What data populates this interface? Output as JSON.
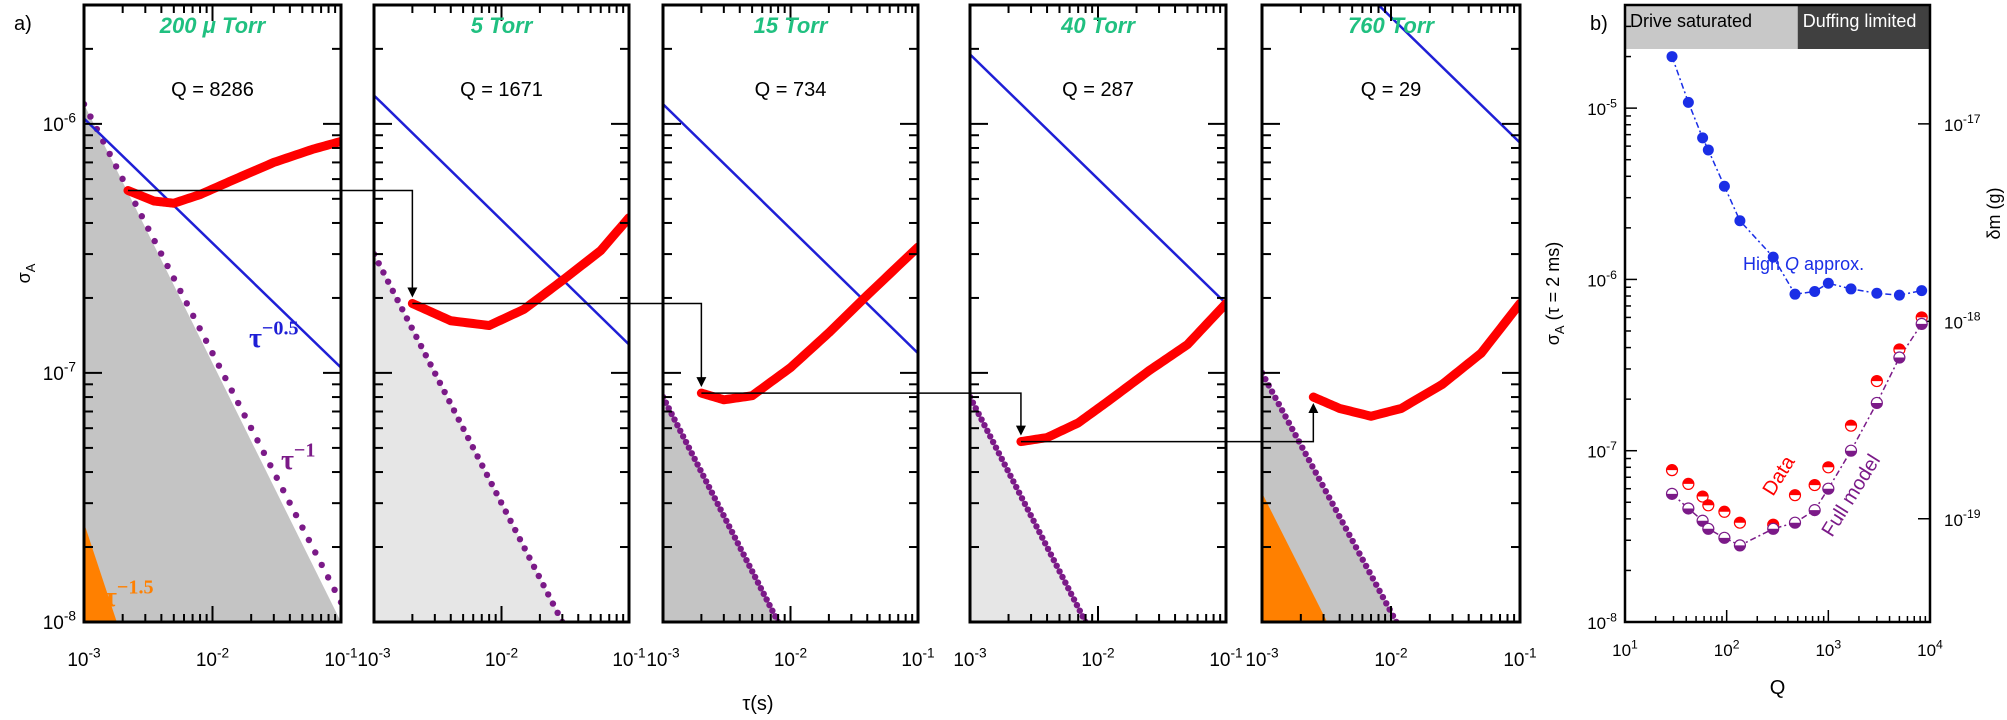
{
  "figure": {
    "panel_a_label": "a)",
    "panel_b_label": "b)",
    "shared_xlabel": "τ(s)"
  },
  "colors": {
    "data": "#ff0000",
    "tau_half": "#1f1fd6",
    "tau_one": "#7b1a88",
    "tau_three_halves": "#ff8000",
    "pressure_label": "#20c080",
    "high_q": "#1a2ee6",
    "gray_dark": "#c4c4c4",
    "gray_light": "#e6e6e6",
    "box_saturated": "#c8c8c8",
    "box_duffing": "#404040"
  },
  "chart_data": [
    {
      "type": "line",
      "id": "panel-200mtorr",
      "title": "200 μ Torr",
      "annotation": "Q = 8286",
      "xscale": "log",
      "yscale": "log",
      "xlim": [
        0.001,
        0.1
      ],
      "ylim": [
        1e-08,
        3e-06
      ],
      "xticks": [
        0.001,
        0.01,
        0.1
      ],
      "xtick_labels": [
        "10-3",
        "10-2",
        "10-1"
      ],
      "yticks": [
        1e-08,
        1e-07,
        1e-06
      ],
      "ytick_labels": [
        "10-8",
        "10-7",
        "10-6"
      ],
      "ylabel": "σA",
      "series": [
        {
          "name": "data",
          "x": [
            0.0022,
            0.0035,
            0.005,
            0.008,
            0.015,
            0.03,
            0.06,
            0.1
          ],
          "y": [
            5.4e-07,
            4.9e-07,
            4.8e-07,
            5.2e-07,
            6e-07,
            7e-07,
            7.9e-07,
            8.5e-07
          ]
        },
        {
          "name": "τ^-0.5 fit",
          "x": [
            0.001,
            0.1
          ],
          "y": [
            1.05e-06,
            1.05e-07
          ]
        },
        {
          "name": "τ^-1 bound",
          "x": [
            0.001,
            0.1
          ],
          "y": [
            1.2e-06,
            1.2e-08
          ]
        },
        {
          "name": "τ^-1.5 bound",
          "x": [
            0.001,
            0.0018
          ],
          "y": [
            2.5e-08,
            1e-08
          ]
        }
      ],
      "region_labels": [
        "τ−0.5",
        "τ−1",
        "τ−1.5"
      ]
    },
    {
      "type": "line",
      "id": "panel-5torr",
      "title": "5 Torr",
      "annotation": "Q = 1671",
      "xscale": "log",
      "yscale": "log",
      "xlim": [
        0.001,
        0.1
      ],
      "ylim": [
        1e-08,
        3e-06
      ],
      "series": [
        {
          "name": "data",
          "x": [
            0.002,
            0.004,
            0.008,
            0.015,
            0.03,
            0.06,
            0.1
          ],
          "y": [
            1.9e-07,
            1.62e-07,
            1.55e-07,
            1.8e-07,
            2.35e-07,
            3.1e-07,
            4.2e-07
          ]
        },
        {
          "name": "τ^-0.5 fit",
          "x": [
            0.001,
            0.1
          ],
          "y": [
            1.3e-06,
            1.3e-07
          ]
        },
        {
          "name": "τ^-1 bound",
          "x": [
            0.001,
            0.03
          ],
          "y": [
            3e-07,
            1e-08
          ]
        }
      ]
    },
    {
      "type": "line",
      "id": "panel-15torr",
      "title": "15 Torr",
      "annotation": "Q = 734",
      "xscale": "log",
      "yscale": "log",
      "xlim": [
        0.001,
        0.1
      ],
      "ylim": [
        1e-08,
        3e-06
      ],
      "series": [
        {
          "name": "data",
          "x": [
            0.002,
            0.003,
            0.005,
            0.01,
            0.02,
            0.04,
            0.1
          ],
          "y": [
            8.3e-08,
            7.8e-08,
            8.1e-08,
            1.05e-07,
            1.45e-07,
            2.05e-07,
            3.2e-07
          ]
        },
        {
          "name": "τ^-0.5 fit",
          "x": [
            0.001,
            0.1
          ],
          "y": [
            1.2e-06,
            1.2e-07
          ]
        },
        {
          "name": "τ^-1 bound",
          "x": [
            0.001,
            0.008
          ],
          "y": [
            8e-08,
            1e-08
          ]
        }
      ]
    },
    {
      "type": "line",
      "id": "panel-40torr",
      "title": "40 Torr",
      "annotation": "Q = 287",
      "xscale": "log",
      "yscale": "log",
      "xlim": [
        0.001,
        0.1
      ],
      "ylim": [
        1e-08,
        3e-06
      ],
      "series": [
        {
          "name": "data",
          "x": [
            0.0025,
            0.004,
            0.007,
            0.012,
            0.025,
            0.05,
            0.1
          ],
          "y": [
            5.3e-08,
            5.5e-08,
            6.3e-08,
            7.7e-08,
            1.02e-07,
            1.3e-07,
            1.9e-07
          ]
        },
        {
          "name": "τ^-0.5 fit",
          "x": [
            0.001,
            0.1
          ],
          "y": [
            1.9e-06,
            1.9e-07
          ]
        },
        {
          "name": "τ^-1 bound",
          "x": [
            0.001,
            0.008
          ],
          "y": [
            8e-08,
            1e-08
          ]
        }
      ]
    },
    {
      "type": "line",
      "id": "panel-760torr",
      "title": "760 Torr",
      "annotation": "Q = 29",
      "xscale": "log",
      "yscale": "log",
      "xlim": [
        0.001,
        0.1
      ],
      "ylim": [
        1e-08,
        3e-06
      ],
      "series": [
        {
          "name": "data",
          "x": [
            0.0025,
            0.004,
            0.007,
            0.012,
            0.025,
            0.05,
            0.1
          ],
          "y": [
            8e-08,
            7.2e-08,
            6.7e-08,
            7.2e-08,
            9e-08,
            1.2e-07,
            1.9e-07
          ]
        },
        {
          "name": "τ^-0.5 fit",
          "x": [
            0.008,
            0.1
          ],
          "y": [
            3e-06,
            8.4e-07
          ]
        },
        {
          "name": "τ^-1 bound",
          "x": [
            0.001,
            0.011
          ],
          "y": [
            1e-07,
            1e-08
          ]
        },
        {
          "name": "τ^-1.5 bound",
          "x": [
            0.001,
            0.0032
          ],
          "y": [
            3.3e-08,
            1e-08
          ]
        }
      ]
    },
    {
      "type": "scatter",
      "id": "panel-b",
      "xlabel": "Q",
      "ylabel": "σA (τ = 2 ms)",
      "ylabel_right": "δm (g)",
      "xscale": "log",
      "yscale": "log",
      "xlim": [
        10,
        10000
      ],
      "ylim": [
        1e-08,
        4e-05
      ],
      "xticks": [
        10,
        100,
        1000,
        10000
      ],
      "xtick_labels": [
        "101",
        "102",
        "103",
        "104"
      ],
      "yticks": [
        1e-08,
        1e-07,
        1e-06,
        1e-05
      ],
      "ytick_labels": [
        "10-8",
        "10-7",
        "10-6",
        "10-5"
      ],
      "right_yticks": [
        1e-19,
        1e-18,
        1e-17
      ],
      "right_ytick_labels": [
        "10-19",
        "10-18",
        "10-17"
      ],
      "regions": [
        {
          "label": "Drive saturated",
          "from": 10,
          "to": 500
        },
        {
          "label": "Duffing limited",
          "from": 500,
          "to": 10000
        }
      ],
      "series": [
        {
          "name": "High Q approx.",
          "x": [
            29,
            42,
            58,
            66,
            95,
            135,
            287,
            470,
            734,
            1000,
            1671,
            3000,
            5000,
            8286
          ],
          "y": [
            2e-05,
            1.08e-05,
            6.7e-06,
            5.7e-06,
            3.5e-06,
            2.2e-06,
            1.35e-06,
            8.2e-07,
            8.5e-07,
            9.5e-07,
            8.8e-07,
            8.3e-07,
            8.1e-07,
            8.6e-07
          ]
        },
        {
          "name": "Data",
          "x": [
            29,
            42,
            58,
            66,
            95,
            135,
            287,
            470,
            734,
            1000,
            1671,
            3000,
            5000,
            8286
          ],
          "y": [
            7.7e-08,
            6.4e-08,
            5.4e-08,
            4.8e-08,
            4.4e-08,
            3.8e-08,
            3.7e-08,
            5.5e-08,
            6.3e-08,
            8e-08,
            1.4e-07,
            2.55e-07,
            3.9e-07,
            6e-07
          ]
        },
        {
          "name": "Full model",
          "x": [
            29,
            42,
            58,
            66,
            95,
            135,
            287,
            470,
            734,
            1000,
            1671,
            3000,
            5000,
            8286
          ],
          "y": [
            5.6e-08,
            4.6e-08,
            3.9e-08,
            3.5e-08,
            3.1e-08,
            2.8e-08,
            3.5e-08,
            3.8e-08,
            4.5e-08,
            6e-08,
            1e-07,
            1.9e-07,
            3.5e-07,
            5.5e-07
          ]
        }
      ],
      "labels": {
        "high_q": "High Q approx.",
        "data": "Data",
        "full_model": "Full model"
      }
    }
  ]
}
